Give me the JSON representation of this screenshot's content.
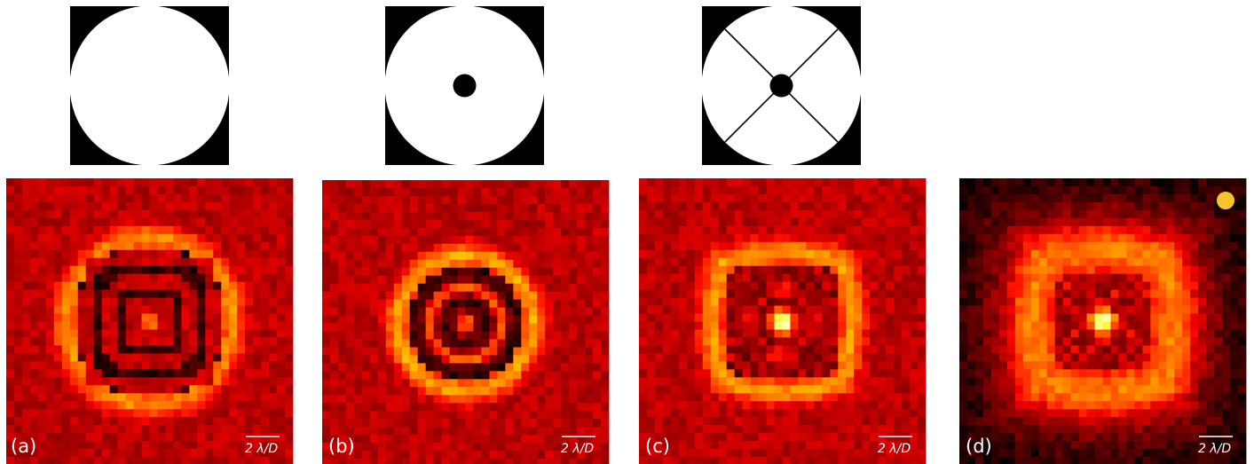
{
  "panels": [
    {
      "label": "(a)",
      "scale_label": "2 λ/D"
    },
    {
      "label": "(b)",
      "scale_label": "2 λ/D"
    },
    {
      "label": "(c)",
      "scale_label": "2 λ/D"
    },
    {
      "label": "(d)",
      "scale_label": "2 λ/D"
    }
  ]
}
